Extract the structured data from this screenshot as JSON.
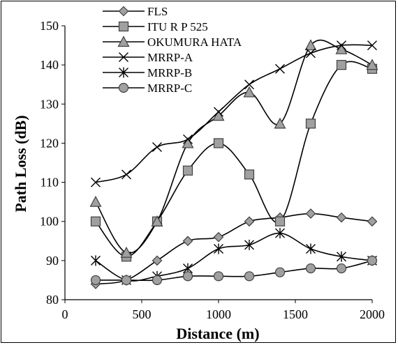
{
  "chart_data": {
    "type": "line",
    "xlabel": "Distance (m)",
    "ylabel": "Path Loss (dB)",
    "xlim": [
      0,
      2000
    ],
    "ylim": [
      80,
      150
    ],
    "xticks": [
      0,
      500,
      1000,
      1500,
      2000
    ],
    "yticks": [
      80,
      90,
      100,
      110,
      120,
      130,
      140,
      150
    ],
    "grid": false,
    "legend_position": "top-left",
    "x": [
      200,
      400,
      600,
      800,
      1000,
      1200,
      1400,
      1600,
      1800,
      2000
    ],
    "series": [
      {
        "name": "FLS",
        "marker": "diamond",
        "values": [
          84,
          85,
          90,
          95,
          96,
          100,
          101,
          102,
          101,
          100
        ]
      },
      {
        "name": "ITU R P 525",
        "marker": "square",
        "values": [
          100,
          91,
          100,
          113,
          120,
          112,
          100,
          125,
          140,
          139
        ]
      },
      {
        "name": "OKUMURA HATA",
        "marker": "triangle",
        "values": [
          105,
          92,
          100,
          120,
          127,
          133,
          125,
          145,
          144,
          140
        ]
      },
      {
        "name": "MRRP-A",
        "marker": "x",
        "values": [
          110,
          112,
          119,
          121,
          128,
          135,
          139,
          143,
          145,
          145
        ]
      },
      {
        "name": "MRRP-B",
        "marker": "star",
        "values": [
          90,
          85,
          86,
          88,
          93,
          94,
          97,
          93,
          91,
          90
        ]
      },
      {
        "name": "MRRP-C",
        "marker": "circle",
        "values": [
          85,
          85,
          85,
          86,
          86,
          86,
          87,
          88,
          88,
          90
        ]
      }
    ]
  }
}
